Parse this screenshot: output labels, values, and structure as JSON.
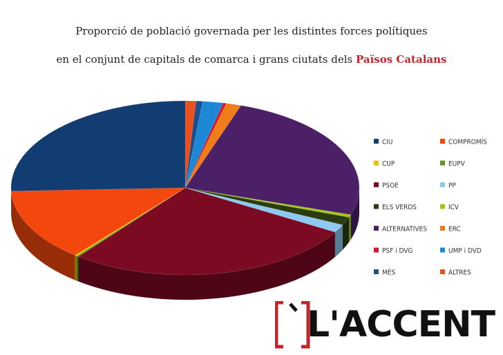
{
  "title": {
    "line1": "Proporció de població governada per les distintes forces polítiques",
    "line2_prefix": "en el conjunt de capitals de comarca i grans ciutats dels",
    "line2_highlight": "Països Catalans"
  },
  "logo": {
    "text": "L'ACCENT"
  },
  "colors": {
    "highlight": "#c0272d"
  },
  "chart_data": {
    "type": "pie",
    "title": "Proporció de població governada per les distintes forces polítiques en el conjunt de capitals de comarca i grans ciutats dels Països Catalans",
    "legend_position": "right",
    "series": [
      {
        "name": "ALTRES",
        "value": 1.0,
        "color": "#e8501e"
      },
      {
        "name": "MÉS",
        "value": 0.6,
        "color": "#1f4e8c"
      },
      {
        "name": "UMP i DVD",
        "value": 1.9,
        "color": "#1e88d6"
      },
      {
        "name": "PSF i DVG",
        "value": 0.3,
        "color": "#d4182b"
      },
      {
        "name": "ERC",
        "value": 1.4,
        "color": "#f07d1a"
      },
      {
        "name": "ALTERNATIVES",
        "value": 24.8,
        "color": "#4b2066"
      },
      {
        "name": "ICV",
        "value": 0.5,
        "color": "#a6c51b"
      },
      {
        "name": "ELS VERDS",
        "value": 1.5,
        "color": "#2b3d10"
      },
      {
        "name": "PP",
        "value": 1.5,
        "color": "#8ec9f2"
      },
      {
        "name": "PSOE",
        "value": 27.0,
        "color": "#7d0a23"
      },
      {
        "name": "EUPV",
        "value": 0.2,
        "color": "#5a9a1f"
      },
      {
        "name": "CUP",
        "value": 0.2,
        "color": "#e6c200"
      },
      {
        "name": "COMPROMÍS",
        "value": 13.5,
        "color": "#f4470e"
      },
      {
        "name": "CIU",
        "value": 25.6,
        "color": "#123d73"
      }
    ],
    "legend": [
      [
        "CIU",
        "COMPROMÍS"
      ],
      [
        "CUP",
        "EUPV"
      ],
      [
        "PSOE",
        "PP"
      ],
      [
        "ELS VERDS",
        "ICV"
      ],
      [
        "ALTERNATIVES",
        "ERC"
      ],
      [
        "PSF i DVG",
        "UMP i DVD"
      ],
      [
        "MÉS",
        "ALTRES"
      ]
    ]
  }
}
